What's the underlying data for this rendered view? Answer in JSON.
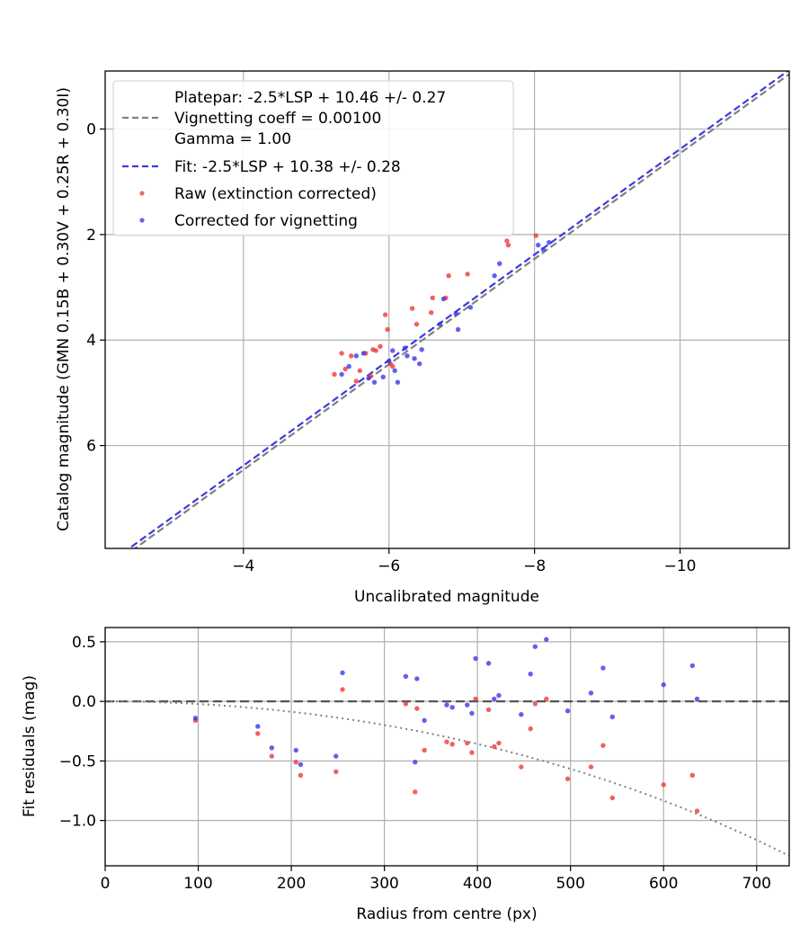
{
  "chart_data": [
    {
      "type": "scatter",
      "xlabel": "Uncalibrated magnitude",
      "ylabel": "Catalog magnitude (GMN 0.15B + 0.30V + 0.25R + 0.30I)",
      "xlim": [
        -2.1,
        -11.5
      ],
      "ylim": [
        7.95,
        -1.1
      ],
      "x_inverted": true,
      "y_inverted": true,
      "xticks": [
        -4,
        -6,
        -8,
        -10
      ],
      "xtick_labels": [
        "−4",
        "−6",
        "−8",
        "−10"
      ],
      "yticks": [
        0,
        2,
        4,
        6
      ],
      "ytick_labels": [
        "0",
        "2",
        "4",
        "6"
      ],
      "grid": true,
      "legend_position": "top-left",
      "legend": {
        "platepar_line1": "Platepar: -2.5*LSP + 10.46 +/- 0.27",
        "platepar_line2": "Vignetting coeff = 0.00100",
        "platepar_line3": "Gamma = 1.00",
        "fit": "Fit: -2.5*LSP + 10.38 +/- 0.28",
        "raw": "Raw (extinction corrected)",
        "corrected": "Corrected for vignetting"
      },
      "lines": [
        {
          "name": "Platepar: -2.5*LSP + 10.46 +/- 0.27",
          "slope": 1,
          "intercept": 10.46,
          "color": "#808080",
          "style": "dashed"
        },
        {
          "name": "Fit: -2.5*LSP + 10.38 +/- 0.28",
          "slope": 1,
          "intercept": 10.38,
          "color": "#3a3ae6",
          "style": "dashed"
        }
      ],
      "series": [
        {
          "name": "Raw (extinction corrected)",
          "color": "#ee3333",
          "points": [
            [
              -5.25,
              4.65
            ],
            [
              -5.35,
              4.25
            ],
            [
              -5.4,
              4.55
            ],
            [
              -5.48,
              4.3
            ],
            [
              -5.55,
              4.78
            ],
            [
              -5.6,
              4.58
            ],
            [
              -5.68,
              4.25
            ],
            [
              -5.75,
              4.68
            ],
            [
              -5.78,
              4.18
            ],
            [
              -5.82,
              4.2
            ],
            [
              -5.88,
              4.12
            ],
            [
              -5.95,
              3.52
            ],
            [
              -5.98,
              3.8
            ],
            [
              -6.02,
              4.45
            ],
            [
              -6.05,
              4.5
            ],
            [
              -6.32,
              3.4
            ],
            [
              -6.38,
              3.7
            ],
            [
              -6.58,
              3.48
            ],
            [
              -6.6,
              3.2
            ],
            [
              -6.78,
              3.2
            ],
            [
              -6.82,
              2.78
            ],
            [
              -7.08,
              2.75
            ],
            [
              -7.62,
              2.12
            ],
            [
              -7.64,
              2.2
            ],
            [
              -8.02,
              2.02
            ]
          ]
        },
        {
          "name": "Corrected for vignetting",
          "color": "#3333ee",
          "points": [
            [
              -5.35,
              4.65
            ],
            [
              -5.45,
              4.5
            ],
            [
              -5.55,
              4.3
            ],
            [
              -5.65,
              4.25
            ],
            [
              -5.72,
              4.72
            ],
            [
              -5.8,
              4.8
            ],
            [
              -5.92,
              4.7
            ],
            [
              -6.0,
              4.4
            ],
            [
              -6.05,
              4.2
            ],
            [
              -6.08,
              4.58
            ],
            [
              -6.12,
              4.8
            ],
            [
              -6.22,
              4.15
            ],
            [
              -6.25,
              4.3
            ],
            [
              -6.35,
              4.35
            ],
            [
              -6.42,
              4.45
            ],
            [
              -6.45,
              4.18
            ],
            [
              -6.7,
              3.7
            ],
            [
              -6.75,
              3.22
            ],
            [
              -6.92,
              3.5
            ],
            [
              -6.95,
              3.8
            ],
            [
              -7.12,
              3.38
            ],
            [
              -7.45,
              2.78
            ],
            [
              -7.52,
              2.55
            ],
            [
              -8.05,
              2.2
            ],
            [
              -8.12,
              2.28
            ],
            [
              -8.2,
              2.15
            ]
          ]
        }
      ]
    },
    {
      "type": "scatter",
      "xlabel": "Radius from centre (px)",
      "ylabel": "Fit residuals (mag)",
      "xlim": [
        0,
        735
      ],
      "ylim": [
        -1.38,
        0.62
      ],
      "xticks": [
        0,
        100,
        200,
        300,
        400,
        500,
        600,
        700
      ],
      "xtick_labels": [
        "0",
        "100",
        "200",
        "300",
        "400",
        "500",
        "600",
        "700"
      ],
      "yticks": [
        0.5,
        0.0,
        -0.5,
        -1.0
      ],
      "ytick_labels": [
        "0.5",
        "0.0",
        "−0.5",
        "−1.0"
      ],
      "grid": true,
      "lines": [
        {
          "name": "zero",
          "type": "hline",
          "y": 0,
          "color": "#555555",
          "style": "dashed"
        },
        {
          "name": "vignetting",
          "type": "curve",
          "coeff": 0.001,
          "color": "#808080",
          "style": "dotted"
        }
      ],
      "series": [
        {
          "name": "Raw (extinction corrected)",
          "color": "#ee3333",
          "points": [
            [
              97,
              -0.16
            ],
            [
              164,
              -0.27
            ],
            [
              179,
              -0.46
            ],
            [
              205,
              -0.51
            ],
            [
              210,
              -0.62
            ],
            [
              248,
              -0.59
            ],
            [
              255,
              0.1
            ],
            [
              323,
              -0.02
            ],
            [
              333,
              -0.76
            ],
            [
              335,
              -0.06
            ],
            [
              343,
              -0.41
            ],
            [
              367,
              -0.34
            ],
            [
              373,
              -0.36
            ],
            [
              389,
              -0.35
            ],
            [
              394,
              -0.43
            ],
            [
              398,
              0.02
            ],
            [
              412,
              -0.07
            ],
            [
              418,
              -0.38
            ],
            [
              423,
              -0.35
            ],
            [
              447,
              -0.55
            ],
            [
              457,
              -0.23
            ],
            [
              462,
              -0.02
            ],
            [
              474,
              0.02
            ],
            [
              497,
              -0.65
            ],
            [
              522,
              -0.55
            ],
            [
              535,
              -0.37
            ],
            [
              545,
              -0.81
            ],
            [
              600,
              -0.7
            ],
            [
              631,
              -0.62
            ],
            [
              636,
              -0.92
            ]
          ]
        },
        {
          "name": "Corrected for vignetting",
          "color": "#3333ee",
          "points": [
            [
              97,
              -0.14
            ],
            [
              164,
              -0.21
            ],
            [
              179,
              -0.39
            ],
            [
              205,
              -0.41
            ],
            [
              210,
              -0.53
            ],
            [
              248,
              -0.46
            ],
            [
              255,
              0.24
            ],
            [
              323,
              0.21
            ],
            [
              333,
              -0.51
            ],
            [
              335,
              0.19
            ],
            [
              343,
              -0.16
            ],
            [
              367,
              -0.03
            ],
            [
              373,
              -0.05
            ],
            [
              389,
              -0.03
            ],
            [
              394,
              -0.1
            ],
            [
              398,
              0.36
            ],
            [
              412,
              0.32
            ],
            [
              418,
              0.02
            ],
            [
              423,
              0.05
            ],
            [
              447,
              -0.11
            ],
            [
              457,
              0.23
            ],
            [
              462,
              0.46
            ],
            [
              474,
              0.52
            ],
            [
              497,
              -0.08
            ],
            [
              522,
              0.07
            ],
            [
              535,
              0.28
            ],
            [
              545,
              -0.13
            ],
            [
              600,
              0.14
            ],
            [
              631,
              0.3
            ],
            [
              636,
              0.02
            ]
          ]
        }
      ]
    }
  ]
}
